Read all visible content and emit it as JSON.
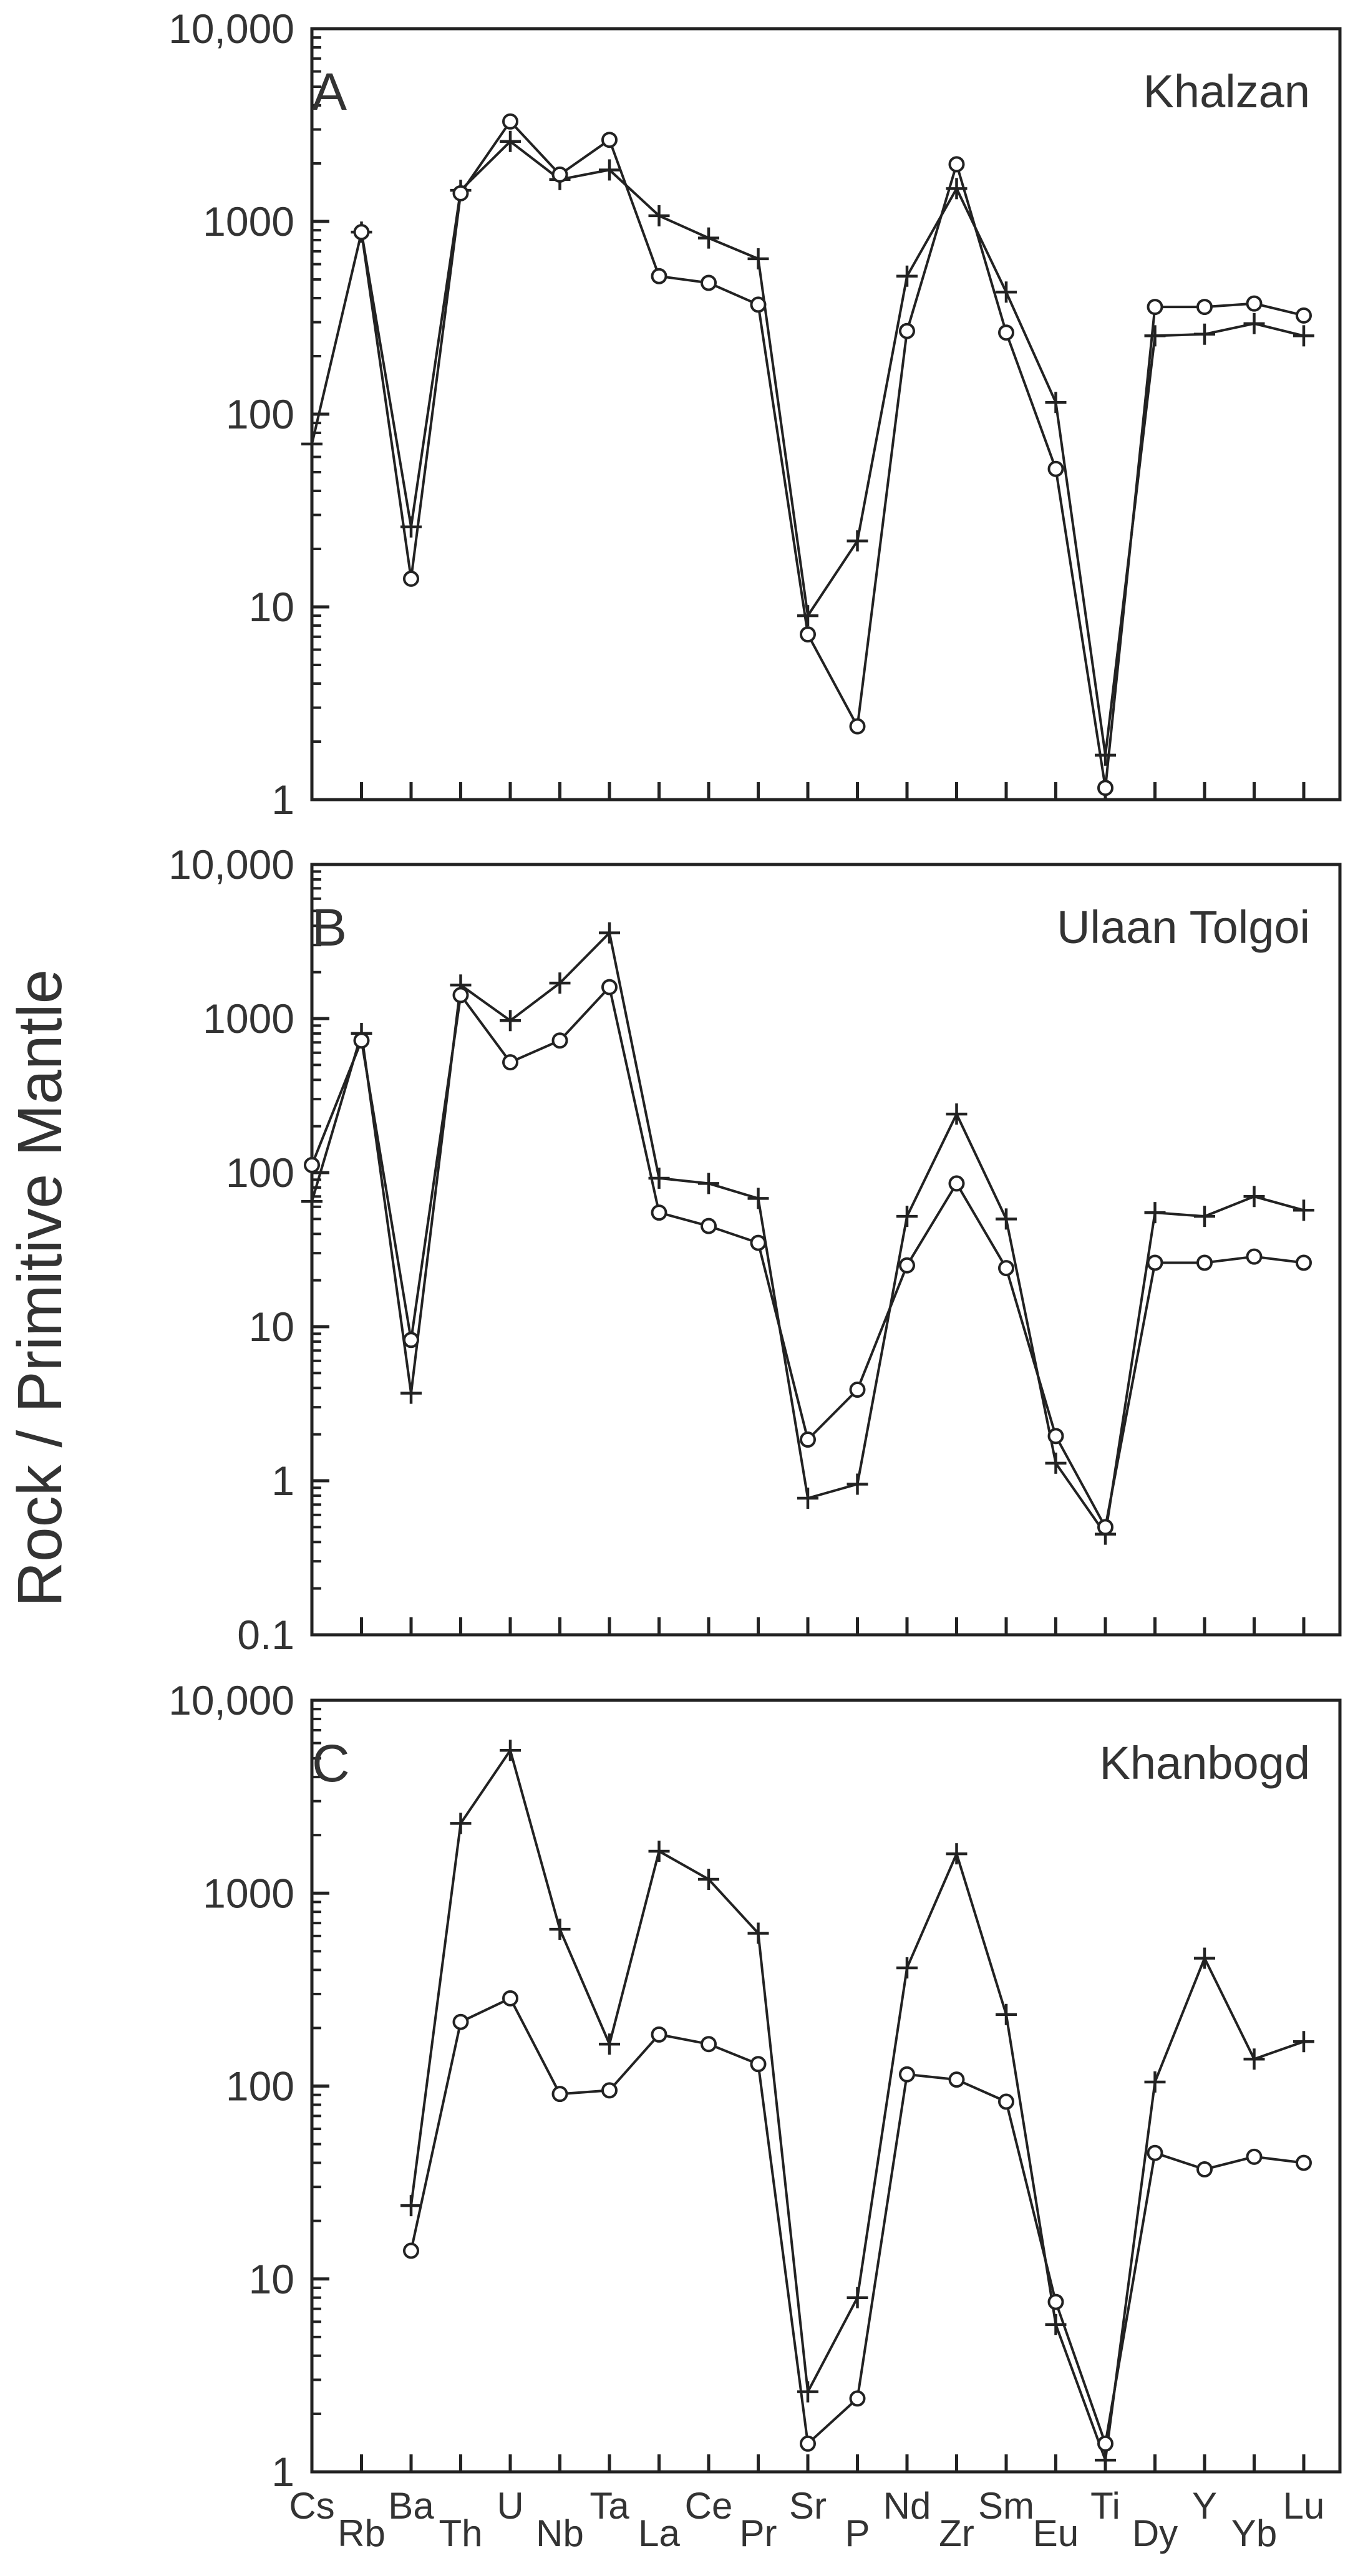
{
  "chart_data": [
    {
      "type": "line",
      "panel": "A",
      "title": "Khalzan",
      "yscale": "log",
      "ylim": [
        1,
        10000
      ],
      "yticks": [
        "1",
        "10",
        "100",
        "1000",
        "10,000"
      ],
      "series": [
        {
          "name": "plus",
          "marker": "plus",
          "values": [
            70,
            880,
            26,
            1450,
            2600,
            1650,
            1850,
            1070,
            820,
            640,
            9,
            22,
            520,
            1480,
            430,
            115,
            1.7,
            255,
            260,
            295,
            255
          ]
        },
        {
          "name": "circle",
          "marker": "circle",
          "values": [
            null,
            880,
            14,
            1400,
            3300,
            1750,
            2650,
            520,
            480,
            370,
            7.2,
            2.4,
            270,
            1980,
            265,
            52,
            1.15,
            360,
            360,
            375,
            325
          ]
        }
      ]
    },
    {
      "type": "line",
      "panel": "B",
      "title": "Ulaan Tolgoi",
      "yscale": "log",
      "ylim": [
        0.1,
        10000
      ],
      "yticks": [
        "0.1",
        "1",
        "10",
        "100",
        "1000",
        "10,000"
      ],
      "series": [
        {
          "name": "plus",
          "marker": "plus",
          "values": [
            65,
            800,
            3.7,
            1650,
            970,
            1700,
            3600,
            92,
            85,
            68,
            0.77,
            0.95,
            52,
            240,
            50,
            1.3,
            0.45,
            55,
            52,
            70,
            57
          ]
        },
        {
          "name": "circle",
          "marker": "circle",
          "values": [
            112,
            720,
            8.2,
            1420,
            520,
            720,
            1600,
            55,
            45,
            35,
            1.85,
            3.9,
            25,
            85,
            24,
            1.95,
            0.5,
            26,
            26,
            28.5,
            26
          ]
        }
      ]
    },
    {
      "type": "line",
      "panel": "C",
      "title": "Khanbogd",
      "yscale": "log",
      "ylim": [
        1,
        10000
      ],
      "yticks": [
        "1",
        "10",
        "100",
        "1000",
        "10,000"
      ],
      "series": [
        {
          "name": "plus",
          "marker": "plus",
          "values": [
            null,
            null,
            24,
            2300,
            5500,
            650,
            165,
            1650,
            1180,
            620,
            2.6,
            8,
            410,
            1600,
            235,
            5.8,
            1.15,
            105,
            460,
            138,
            170
          ]
        },
        {
          "name": "circle",
          "marker": "circle",
          "values": [
            null,
            null,
            14,
            215,
            285,
            91,
            95,
            185,
            165,
            130,
            1.4,
            2.4,
            115,
            108,
            83,
            7.6,
            1.4,
            45,
            37,
            43,
            40
          ]
        }
      ]
    }
  ],
  "x_categories": [
    "Cs",
    "Rb",
    "Ba",
    "Th",
    "U",
    "Nb",
    "Ta",
    "La",
    "Ce",
    "Pr",
    "Sr",
    "P",
    "Nd",
    "Zr",
    "Sm",
    "Eu",
    "Ti",
    "Dy",
    "Y",
    "Yb",
    "Lu"
  ],
  "x_label_rows": [
    "upper",
    "lower",
    "upper",
    "lower",
    "upper",
    "lower",
    "upper",
    "lower",
    "upper",
    "lower",
    "upper",
    "lower",
    "upper",
    "lower",
    "upper",
    "lower",
    "upper",
    "lower",
    "upper",
    "lower",
    "upper"
  ],
  "ylabel": "Rock / Primitive Mantle",
  "colors": {
    "ink": "#222222",
    "text": "#333333",
    "background": "#ffffff"
  }
}
